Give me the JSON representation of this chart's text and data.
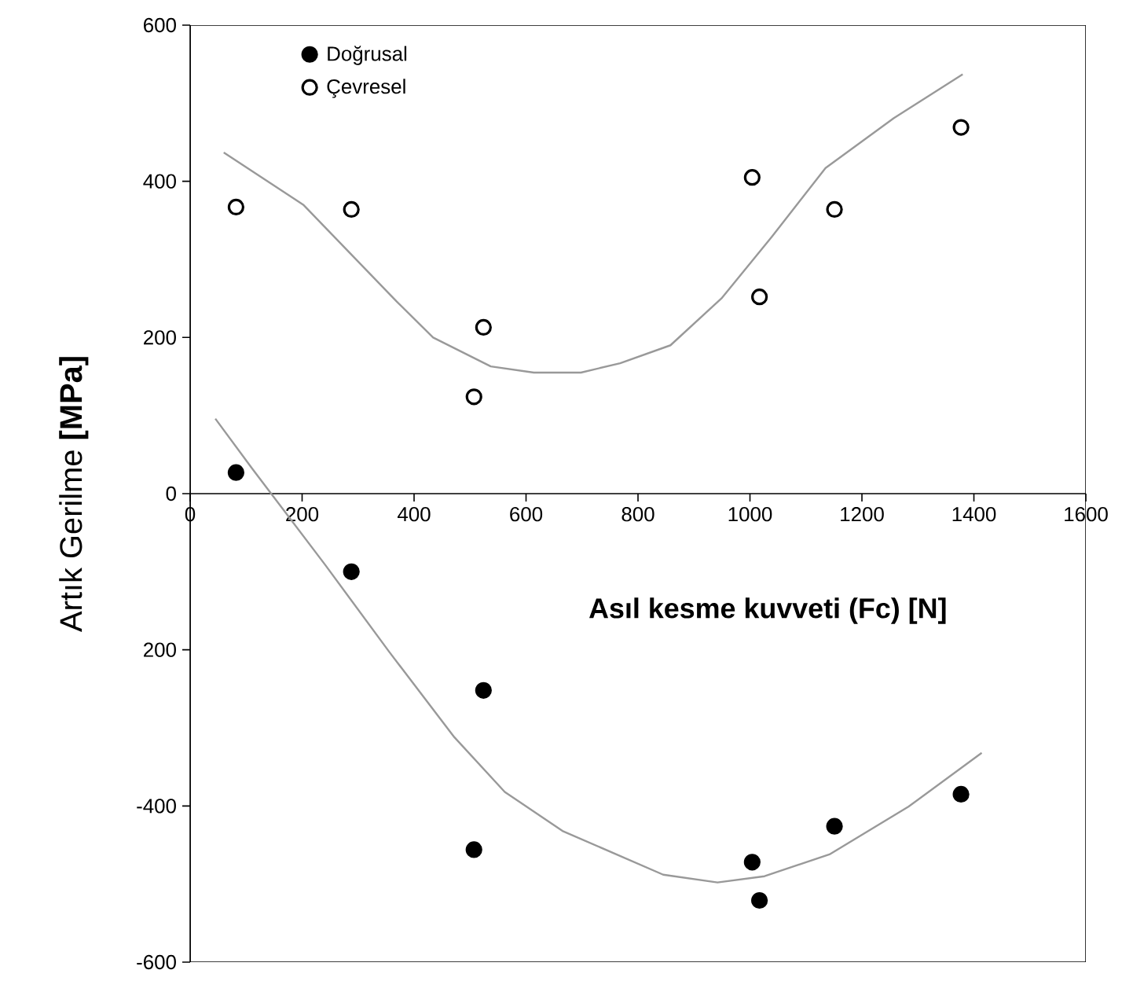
{
  "chart_data": {
    "type": "scatter",
    "xlabel": "Asıl kesme kuvveti  (Fc)  [N]",
    "ylabel": "Artık Gerilme  **[MPa]**",
    "xlim": [
      0,
      1600
    ],
    "ylim": [
      -600,
      600
    ],
    "xticks": [
      0,
      200,
      400,
      600,
      800,
      1000,
      1200,
      1400,
      1600
    ],
    "yticks": [
      -600,
      -400,
      {
        "value": -200,
        "label": "200"
      },
      0,
      200,
      400,
      600
    ],
    "legend": "top left",
    "marker": "circle",
    "series": [
      {
        "name": "Doğrusal",
        "color": "#000000",
        "x": [
          82,
          288,
          507,
          524,
          1004,
          1017,
          1151,
          1377
        ],
        "values": [
          27,
          -100,
          -456,
          -252,
          -472,
          -521,
          -426,
          -385
        ]
      },
      {
        "name": "Çevresel",
        "color": "#ffffff",
        "x": [
          82,
          288,
          507,
          524,
          1004,
          1017,
          1151,
          1377
        ],
        "values": [
          367,
          364,
          124,
          213,
          405,
          252,
          364,
          469
        ]
      },
      {
        "type": "line",
        "marker": "none",
        "color": "#999999",
        "x": [
          60,
          202,
          369,
          434,
          537,
          614,
          698,
          768,
          858,
          949,
          1039,
          1135,
          1257,
          1380
        ],
        "values": [
          437,
          370,
          246,
          200,
          163,
          155,
          155,
          167,
          190,
          250,
          329,
          417,
          481,
          537
        ]
      },
      {
        "type": "line",
        "marker": "none",
        "color": "#999999",
        "x": [
          45,
          112,
          241,
          356,
          472,
          562,
          665,
          845,
          942,
          1026,
          1142,
          1283,
          1414
        ],
        "values": [
          96,
          31,
          -91,
          -203,
          -312,
          -382,
          -432,
          -488,
          -498,
          -490,
          -462,
          -401,
          -332
        ]
      }
    ]
  }
}
